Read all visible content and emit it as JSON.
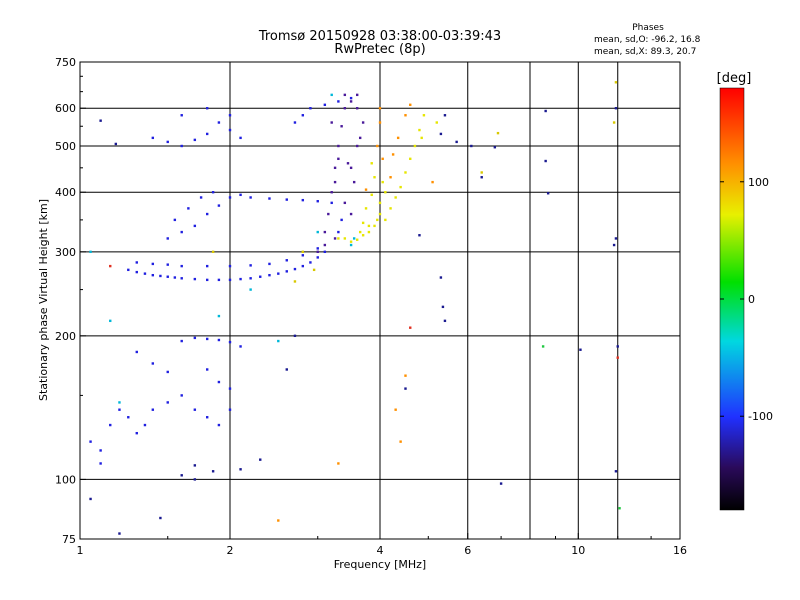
{
  "chart_data": {
    "type": "scatter",
    "title": "Tromsø 20150928 03:38:00-03:39:43",
    "subtitle": "RwPretec (8p)",
    "stats": {
      "heading": "Phases",
      "line_o": "mean, sd,O: -96.2, 16.8",
      "line_x": "mean, sd,X:  89.3, 20.7"
    },
    "xlabel": "Frequency [MHz]",
    "ylabel": "Stationary phase Virtual Height [km]",
    "x_scale": "log",
    "y_scale": "log",
    "xlim": [
      1,
      16
    ],
    "ylim": [
      75,
      750
    ],
    "x_ticks": [
      1,
      2,
      4,
      6,
      10,
      16
    ],
    "x_ticklabels": [
      "1",
      "2",
      "4",
      "6",
      "10",
      "16"
    ],
    "x_gridlines": [
      2,
      4,
      6,
      8,
      10,
      12
    ],
    "y_ticks": [
      75,
      100,
      200,
      300,
      400,
      500,
      600,
      750
    ],
    "y_ticklabels": [
      "75",
      "100",
      "200",
      "300",
      "400",
      "500",
      "600",
      "750"
    ],
    "y_gridlines": [
      100,
      200,
      300,
      400,
      500,
      600
    ],
    "grid": true,
    "colorbar": {
      "label": "[deg]",
      "min": -180,
      "max": 180,
      "ticks": [
        100,
        0,
        -100
      ],
      "ticklabels": [
        "100",
        "0",
        "-100"
      ]
    },
    "series": [
      {
        "color": "#2020e0",
        "points": [
          [
            1.25,
            275
          ],
          [
            1.3,
            272
          ],
          [
            1.35,
            270
          ],
          [
            1.4,
            268
          ],
          [
            1.45,
            267
          ],
          [
            1.5,
            266
          ],
          [
            1.55,
            265
          ],
          [
            1.6,
            264
          ],
          [
            1.7,
            263
          ],
          [
            1.8,
            262
          ],
          [
            1.9,
            262
          ],
          [
            2.0,
            262
          ],
          [
            2.1,
            263
          ],
          [
            2.2,
            264
          ],
          [
            2.3,
            266
          ],
          [
            2.4,
            268
          ],
          [
            2.5,
            270
          ],
          [
            2.6,
            273
          ],
          [
            2.7,
            276
          ],
          [
            2.8,
            280
          ],
          [
            2.9,
            285
          ],
          [
            3.0,
            292
          ],
          [
            3.1,
            300
          ],
          [
            1.3,
            285
          ],
          [
            1.4,
            283
          ],
          [
            1.5,
            282
          ],
          [
            1.6,
            280
          ],
          [
            1.8,
            280
          ],
          [
            2.0,
            280
          ],
          [
            2.2,
            281
          ],
          [
            2.4,
            283
          ],
          [
            2.6,
            288
          ],
          [
            2.8,
            295
          ],
          [
            3.0,
            305
          ],
          [
            1.5,
            320
          ],
          [
            1.6,
            330
          ],
          [
            1.7,
            340
          ],
          [
            1.8,
            360
          ],
          [
            1.9,
            375
          ],
          [
            2.0,
            390
          ],
          [
            1.55,
            350
          ],
          [
            1.65,
            370
          ],
          [
            1.75,
            390
          ],
          [
            1.85,
            400
          ],
          [
            2.1,
            395
          ],
          [
            2.2,
            390
          ],
          [
            2.4,
            388
          ],
          [
            2.6,
            386
          ],
          [
            2.8,
            385
          ],
          [
            3.0,
            383
          ],
          [
            3.2,
            380
          ],
          [
            3.3,
            330
          ],
          [
            3.35,
            350
          ],
          [
            1.4,
            520
          ],
          [
            1.5,
            510
          ],
          [
            1.6,
            500
          ],
          [
            1.7,
            515
          ],
          [
            1.8,
            530
          ],
          [
            1.9,
            560
          ],
          [
            2.0,
            540
          ],
          [
            2.1,
            520
          ],
          [
            1.6,
            580
          ],
          [
            1.8,
            600
          ],
          [
            2.0,
            580
          ],
          [
            2.7,
            560
          ],
          [
            2.8,
            580
          ],
          [
            2.9,
            600
          ],
          [
            3.1,
            610
          ],
          [
            3.3,
            620
          ],
          [
            3.5,
            630
          ],
          [
            1.3,
            185
          ],
          [
            1.4,
            175
          ],
          [
            1.5,
            168
          ],
          [
            1.6,
            195
          ],
          [
            1.7,
            198
          ],
          [
            1.8,
            197
          ],
          [
            1.9,
            196
          ],
          [
            2.0,
            194
          ],
          [
            2.1,
            190
          ],
          [
            1.8,
            170
          ],
          [
            1.9,
            160
          ],
          [
            2.0,
            155
          ],
          [
            1.05,
            120
          ],
          [
            1.1,
            115
          ],
          [
            1.15,
            130
          ],
          [
            1.2,
            140
          ],
          [
            1.25,
            135
          ],
          [
            1.3,
            125
          ],
          [
            1.35,
            130
          ],
          [
            1.4,
            140
          ],
          [
            1.5,
            145
          ],
          [
            1.6,
            150
          ],
          [
            1.7,
            140
          ],
          [
            1.8,
            135
          ],
          [
            1.9,
            130
          ],
          [
            2.0,
            140
          ],
          [
            1.1,
            108
          ]
        ]
      },
      {
        "color": "#4a1a9a",
        "points": [
          [
            3.1,
            330
          ],
          [
            3.15,
            360
          ],
          [
            3.2,
            400
          ],
          [
            3.25,
            450
          ],
          [
            3.3,
            500
          ],
          [
            3.35,
            550
          ],
          [
            3.4,
            600
          ],
          [
            3.5,
            620
          ],
          [
            3.6,
            600
          ],
          [
            3.7,
            560
          ],
          [
            3.6,
            500
          ],
          [
            3.5,
            450
          ],
          [
            3.3,
            470
          ],
          [
            3.25,
            420
          ],
          [
            3.4,
            380
          ],
          [
            3.5,
            360
          ],
          [
            3.55,
            420
          ],
          [
            3.2,
            560
          ],
          [
            3.6,
            640
          ],
          [
            3.4,
            640
          ],
          [
            3.25,
            320
          ],
          [
            3.45,
            460
          ],
          [
            3.65,
            520
          ],
          [
            3.1,
            310
          ],
          [
            3.0,
            300
          ]
        ]
      },
      {
        "color": "#00b8d8",
        "points": [
          [
            3.2,
            640
          ],
          [
            3.5,
            310
          ],
          [
            3.55,
            320
          ],
          [
            3.0,
            330
          ],
          [
            2.5,
            195
          ],
          [
            1.9,
            220
          ],
          [
            2.2,
            250
          ],
          [
            1.2,
            145
          ],
          [
            1.05,
            300
          ],
          [
            1.15,
            215
          ]
        ]
      },
      {
        "color": "#e6e600",
        "points": [
          [
            3.4,
            320
          ],
          [
            3.5,
            315
          ],
          [
            3.6,
            318
          ],
          [
            3.7,
            325
          ],
          [
            3.8,
            330
          ],
          [
            3.9,
            340
          ],
          [
            4.0,
            360
          ],
          [
            4.0,
            380
          ],
          [
            4.1,
            400
          ],
          [
            4.05,
            420
          ],
          [
            3.9,
            430
          ],
          [
            3.85,
            460
          ],
          [
            3.8,
            340
          ],
          [
            3.95,
            350
          ],
          [
            4.1,
            350
          ],
          [
            4.2,
            370
          ],
          [
            4.3,
            390
          ],
          [
            4.4,
            410
          ],
          [
            4.5,
            440
          ],
          [
            4.6,
            470
          ],
          [
            4.7,
            500
          ],
          [
            4.8,
            540
          ],
          [
            4.9,
            580
          ],
          [
            5.2,
            560
          ],
          [
            4.85,
            520
          ],
          [
            3.7,
            345
          ],
          [
            3.75,
            370
          ],
          [
            3.85,
            395
          ],
          [
            3.65,
            330
          ],
          [
            3.3,
            320
          ]
        ]
      },
      {
        "color": "#ff9000",
        "points": [
          [
            3.95,
            500
          ],
          [
            4.0,
            560
          ],
          [
            4.05,
            470
          ],
          [
            4.2,
            430
          ],
          [
            4.25,
            480
          ],
          [
            4.35,
            520
          ],
          [
            4.5,
            580
          ],
          [
            4.6,
            610
          ],
          [
            5.1,
            420
          ],
          [
            4.0,
            600
          ],
          [
            3.3,
            108
          ],
          [
            4.3,
            140
          ],
          [
            4.5,
            165
          ],
          [
            4.4,
            120
          ],
          [
            2.5,
            82
          ],
          [
            3.75,
            405
          ]
        ]
      },
      {
        "color": "#d8c800",
        "points": [
          [
            6.9,
            532
          ],
          [
            6.4,
            440
          ],
          [
            11.8,
            560
          ],
          [
            11.9,
            680
          ],
          [
            1.85,
            300
          ],
          [
            2.8,
            300
          ],
          [
            2.95,
            275
          ],
          [
            2.7,
            260
          ]
        ]
      },
      {
        "color": "#1a1a90",
        "points": [
          [
            5.3,
            530
          ],
          [
            5.4,
            580
          ],
          [
            5.7,
            510
          ],
          [
            6.1,
            500
          ],
          [
            6.8,
            497
          ],
          [
            8.6,
            592
          ],
          [
            8.6,
            465
          ],
          [
            8.7,
            398
          ],
          [
            10.1,
            187
          ],
          [
            11.9,
            320
          ],
          [
            11.8,
            310
          ],
          [
            11.9,
            600
          ],
          [
            12.0,
            190
          ],
          [
            11.9,
            104
          ],
          [
            11.8,
            74
          ],
          [
            5.3,
            265
          ],
          [
            5.35,
            230
          ],
          [
            5.4,
            215
          ],
          [
            4.8,
            325
          ],
          [
            4.5,
            155
          ],
          [
            2.6,
            170
          ],
          [
            2.7,
            200
          ],
          [
            2.3,
            110
          ],
          [
            2.1,
            105
          ],
          [
            1.85,
            104
          ],
          [
            1.7,
            100
          ],
          [
            1.6,
            102
          ],
          [
            1.45,
            83
          ],
          [
            1.2,
            77
          ],
          [
            1.7,
            107
          ],
          [
            7.0,
            98
          ],
          [
            1.05,
            91
          ],
          [
            6.4,
            430
          ],
          [
            1.1,
            565
          ],
          [
            1.18,
            505
          ]
        ]
      },
      {
        "color": "#e03020",
        "points": [
          [
            4.6,
            208
          ],
          [
            12.0,
            180
          ],
          [
            1.15,
            280
          ]
        ]
      },
      {
        "color": "#20c840",
        "points": [
          [
            12.1,
            87
          ],
          [
            8.5,
            190
          ]
        ]
      }
    ]
  }
}
